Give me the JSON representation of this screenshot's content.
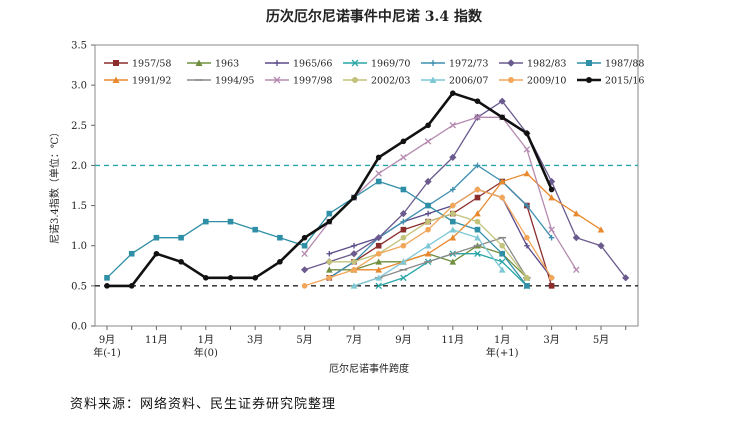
{
  "chart_data": {
    "type": "line",
    "title": "历次厄尔尼诺事件中尼诺 3.4 指数",
    "ylabel": "尼诺3.4指数（单位：℃）",
    "xlabel": "厄尔尼诺事件跨度",
    "ylim": [
      0,
      3.5
    ],
    "yticks": [
      "0.0",
      "0.5",
      "1.0",
      "1.5",
      "2.0",
      "2.5",
      "3.0",
      "3.5"
    ],
    "xlim": [
      0,
      21
    ],
    "xticks": [
      {
        "x": 0,
        "label": "9月",
        "sub": "年(-1)"
      },
      {
        "x": 2,
        "label": "11月",
        "sub": ""
      },
      {
        "x": 4,
        "label": "1月",
        "sub": "年(0)"
      },
      {
        "x": 6,
        "label": "3月",
        "sub": ""
      },
      {
        "x": 8,
        "label": "5月",
        "sub": ""
      },
      {
        "x": 10,
        "label": "7月",
        "sub": ""
      },
      {
        "x": 12,
        "label": "9月",
        "sub": ""
      },
      {
        "x": 14,
        "label": "11月",
        "sub": ""
      },
      {
        "x": 16,
        "label": "1月",
        "sub": "年(+1)"
      },
      {
        "x": 18,
        "label": "3月",
        "sub": ""
      },
      {
        "x": 20,
        "label": "5月",
        "sub": ""
      }
    ],
    "reference_lines": [
      {
        "y": 2.0,
        "color": "#2aa6a6",
        "style": "dashed"
      },
      {
        "y": 0.5,
        "color": "#222222",
        "style": "dashed"
      }
    ],
    "grid": false,
    "legend_position": "top",
    "series": [
      {
        "name": "1957/58",
        "color": "#8b2d2d",
        "marker": "square",
        "x": [
          9,
          10,
          11,
          12,
          13,
          14,
          15,
          16,
          17,
          18
        ],
        "values": [
          0.6,
          0.8,
          1.0,
          1.2,
          1.3,
          1.4,
          1.6,
          1.8,
          1.5,
          0.5
        ]
      },
      {
        "name": "1963",
        "color": "#6f8f3e",
        "marker": "triangle",
        "x": [
          9,
          10,
          11,
          12,
          13,
          14,
          15,
          16,
          17
        ],
        "values": [
          0.7,
          0.7,
          0.8,
          0.8,
          0.9,
          0.8,
          1.0,
          0.9,
          0.6
        ]
      },
      {
        "name": "1965/66",
        "color": "#5a4a8a",
        "marker": "cross",
        "x": [
          9,
          10,
          11,
          12,
          13,
          14,
          15,
          16,
          17,
          18
        ],
        "values": [
          0.9,
          1.0,
          1.1,
          1.3,
          1.4,
          1.5,
          1.7,
          1.6,
          1.0,
          0.6
        ]
      },
      {
        "name": "1969/70",
        "color": "#2aa6a6",
        "marker": "x",
        "x": [
          11,
          12,
          13,
          14,
          15,
          16,
          17
        ],
        "values": [
          0.5,
          0.6,
          0.8,
          0.9,
          0.9,
          0.8,
          0.5
        ]
      },
      {
        "name": "1972/73",
        "color": "#3f8fb0",
        "marker": "plus",
        "x": [
          9,
          10,
          11,
          12,
          13,
          14,
          15,
          16,
          17,
          18
        ],
        "values": [
          0.6,
          0.8,
          1.1,
          1.3,
          1.5,
          1.7,
          2.0,
          1.8,
          1.5,
          1.1
        ]
      },
      {
        "name": "1982/83",
        "color": "#6b5a8e",
        "marker": "diamond",
        "x": [
          8,
          9,
          10,
          11,
          12,
          13,
          14,
          15,
          16,
          17,
          18,
          19,
          20,
          21
        ],
        "values": [
          0.7,
          0.8,
          0.9,
          1.1,
          1.4,
          1.8,
          2.1,
          2.6,
          2.8,
          2.4,
          1.8,
          1.1,
          1.0,
          0.6
        ]
      },
      {
        "name": "1987/88",
        "color": "#2f8fa6",
        "marker": "square",
        "x": [
          0,
          1,
          2,
          3,
          4,
          5,
          6,
          7,
          8,
          9,
          10,
          11,
          12,
          13,
          14,
          15,
          16,
          17
        ],
        "values": [
          0.6,
          0.9,
          1.1,
          1.1,
          1.3,
          1.3,
          1.2,
          1.1,
          1.0,
          1.4,
          1.6,
          1.8,
          1.7,
          1.5,
          1.3,
          1.2,
          0.9,
          0.5
        ]
      },
      {
        "name": "1991/92",
        "color": "#e8892f",
        "marker": "triangle",
        "x": [
          10,
          11,
          12,
          13,
          14,
          15,
          16,
          17,
          18,
          19,
          20
        ],
        "values": [
          0.7,
          0.7,
          0.8,
          0.9,
          1.1,
          1.4,
          1.8,
          1.9,
          1.6,
          1.4,
          1.2
        ]
      },
      {
        "name": "1994/95",
        "color": "#8a8a8a",
        "marker": "dash",
        "x": [
          10,
          11,
          12,
          13,
          14,
          15,
          16,
          17
        ],
        "values": [
          0.5,
          0.6,
          0.7,
          0.8,
          0.9,
          1.0,
          1.1,
          0.6
        ]
      },
      {
        "name": "1997/98",
        "color": "#b58ab0",
        "marker": "x",
        "x": [
          8,
          9,
          10,
          11,
          12,
          13,
          14,
          15,
          16,
          17,
          18,
          19
        ],
        "values": [
          0.9,
          1.3,
          1.6,
          1.9,
          2.1,
          2.3,
          2.5,
          2.6,
          2.6,
          2.2,
          1.2,
          0.7
        ]
      },
      {
        "name": "2002/03",
        "color": "#c2c27a",
        "marker": "circle",
        "x": [
          9,
          10,
          11,
          12,
          13,
          14,
          15,
          16,
          17
        ],
        "values": [
          0.8,
          0.8,
          0.9,
          1.1,
          1.3,
          1.4,
          1.3,
          1.0,
          0.6
        ]
      },
      {
        "name": "2006/07",
        "color": "#7ec8d6",
        "marker": "triangle",
        "x": [
          10,
          11,
          12,
          13,
          14,
          15,
          16
        ],
        "values": [
          0.5,
          0.6,
          0.8,
          1.0,
          1.2,
          1.1,
          0.7
        ]
      },
      {
        "name": "2009/10",
        "color": "#f2a65a",
        "marker": "circle",
        "x": [
          8,
          9,
          10,
          11,
          12,
          13,
          14,
          15,
          16,
          17,
          18
        ],
        "values": [
          0.5,
          0.6,
          0.7,
          0.9,
          1.0,
          1.2,
          1.5,
          1.7,
          1.6,
          1.1,
          0.6
        ]
      },
      {
        "name": "2015/16",
        "color": "#111111",
        "marker": "circle",
        "x": [
          0,
          1,
          2,
          3,
          4,
          5,
          6,
          7,
          8,
          9,
          10,
          11,
          12,
          13,
          14,
          15,
          16,
          17,
          18
        ],
        "values": [
          0.5,
          0.5,
          0.9,
          0.8,
          0.6,
          0.6,
          0.6,
          0.8,
          1.1,
          1.3,
          1.6,
          2.1,
          2.3,
          2.5,
          2.9,
          2.8,
          2.6,
          2.4,
          1.7
        ]
      }
    ]
  },
  "source": "资料来源：网络资料、民生证券研究院整理"
}
